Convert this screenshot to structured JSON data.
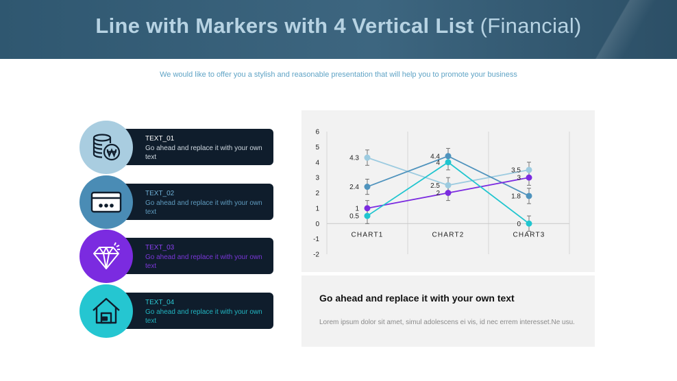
{
  "header": {
    "title_bold": "Line with Markers with 4 Vertical List",
    "title_light": "(Financial)"
  },
  "subtitle": "We would like to offer you a stylish and reasonable presentation that will help you to promote your business",
  "items": [
    {
      "title": "TEXT_01",
      "body": "Go ahead and replace it with your own text",
      "icon": "coins-icon",
      "circle_color": "#a9cde0",
      "title_color": "#ffffff",
      "body_color": "#cfd8e0"
    },
    {
      "title": "TEXT_02",
      "body": "Go ahead and replace it with your own text",
      "icon": "credit-card-icon",
      "circle_color": "#4a8cb5",
      "title_color": "#6fb0d6",
      "body_color": "#5f9bbf"
    },
    {
      "title": "TEXT_03",
      "body": "Go ahead and replace it with your own text",
      "icon": "diamond-icon",
      "circle_color": "#7b2be0",
      "title_color": "#8a3ff0",
      "body_color": "#7a36d8"
    },
    {
      "title": "TEXT_04",
      "body": "Go ahead and replace it with your own text",
      "icon": "house-icon",
      "circle_color": "#25c6d1",
      "title_color": "#2cc9d4",
      "body_color": "#22b6c2"
    }
  ],
  "chart_data": {
    "type": "line",
    "categories": [
      "CHART1",
      "CHART2",
      "CHART3"
    ],
    "ylim": [
      -2,
      6
    ],
    "yticks": [
      "6",
      "5",
      "4",
      "3",
      "2",
      "1",
      "0",
      "-1",
      "-2"
    ],
    "grid": true,
    "series": [
      {
        "values": [
          4.3,
          2.5,
          3.5
        ],
        "labels": [
          "4.3",
          "2.5",
          "3.5"
        ],
        "color": "#9ccbe0"
      },
      {
        "values": [
          2.4,
          4.4,
          1.8
        ],
        "labels": [
          "2.4",
          "4.4",
          "1.8"
        ],
        "color": "#4f93bd"
      },
      {
        "values": [
          1,
          2,
          3
        ],
        "labels": [
          "1",
          "2",
          "3"
        ],
        "color": "#7b2be0"
      },
      {
        "values": [
          0.5,
          4,
          0
        ],
        "labels": [
          "0.5",
          "4",
          "0"
        ],
        "color": "#20c5cf"
      }
    ]
  },
  "text_panel": {
    "title": "Go ahead and replace it with your own text",
    "body": "Lorem ipsum dolor sit amet, simul adolescens ei vis, id nec errem interesset.Ne usu."
  }
}
